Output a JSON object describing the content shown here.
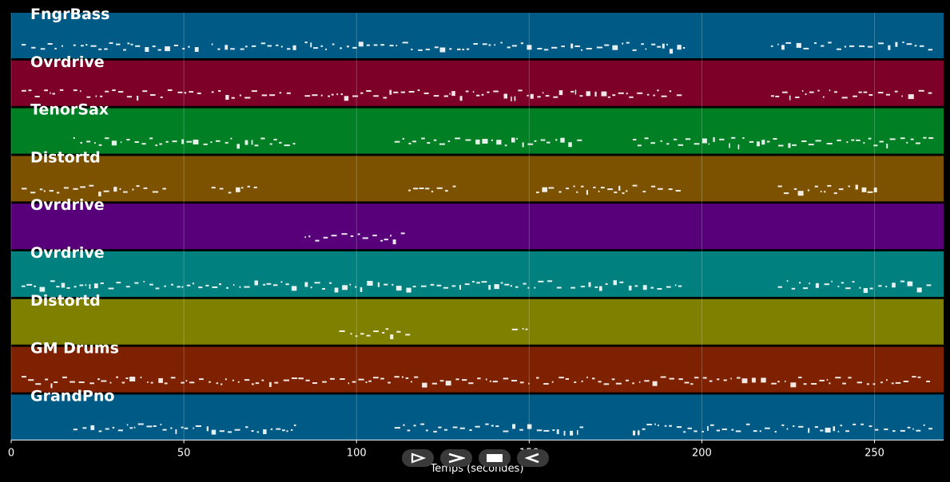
{
  "chart_data": {
    "type": "piano-roll",
    "xlabel": "Temps (secondes)",
    "xlim": [
      0,
      270
    ],
    "x_ticks": [
      0,
      50,
      100,
      150,
      200,
      250
    ],
    "grid": true,
    "tracks": [
      {
        "name": "FngrBass",
        "color": "#005a86",
        "segments": [
          [
            3,
            15
          ],
          [
            18,
            55
          ],
          [
            58,
            82
          ],
          [
            85,
            160
          ],
          [
            162,
            195
          ],
          [
            220,
            266
          ]
        ]
      },
      {
        "name": "Ovrdrive",
        "color": "#7c0028",
        "segments": [
          [
            3,
            15
          ],
          [
            18,
            55
          ],
          [
            58,
            82
          ],
          [
            85,
            160
          ],
          [
            162,
            195
          ],
          [
            220,
            266
          ]
        ]
      },
      {
        "name": "TenorSax",
        "color": "#007f24",
        "segments": [
          [
            18,
            82
          ],
          [
            111,
            165
          ],
          [
            180,
            266
          ]
        ]
      },
      {
        "name": "Distortd",
        "color": "#7c5200",
        "segments": [
          [
            3,
            45
          ],
          [
            58,
            72
          ],
          [
            115,
            128
          ],
          [
            152,
            195
          ],
          [
            222,
            250
          ]
        ]
      },
      {
        "name": "Ovrdrive",
        "color": "#57007a",
        "segments": [
          [
            85,
            113
          ]
        ]
      },
      {
        "name": "Ovrdrive",
        "color": "#00807f",
        "segments": [
          [
            3,
            82
          ],
          [
            85,
            160
          ],
          [
            162,
            195
          ],
          [
            222,
            266
          ]
        ]
      },
      {
        "name": "Distortd",
        "color": "#7f7f00",
        "segments": [
          [
            95,
            115
          ],
          [
            145,
            149
          ]
        ]
      },
      {
        "name": "GM Drums",
        "color": "#7e2100",
        "segments": [
          [
            3,
            150
          ],
          [
            152,
            266
          ]
        ]
      },
      {
        "name": "GrandPno",
        "color": "#005a86",
        "segments": [
          [
            18,
            82
          ],
          [
            111,
            165
          ],
          [
            180,
            266
          ]
        ]
      }
    ]
  },
  "controls": [
    {
      "name": "play-reverse",
      "icon": "play-outline-icon"
    },
    {
      "name": "play",
      "icon": "chevron-right-icon"
    },
    {
      "name": "stop",
      "icon": "stop-icon"
    },
    {
      "name": "rewind",
      "icon": "rewind-icon"
    }
  ]
}
